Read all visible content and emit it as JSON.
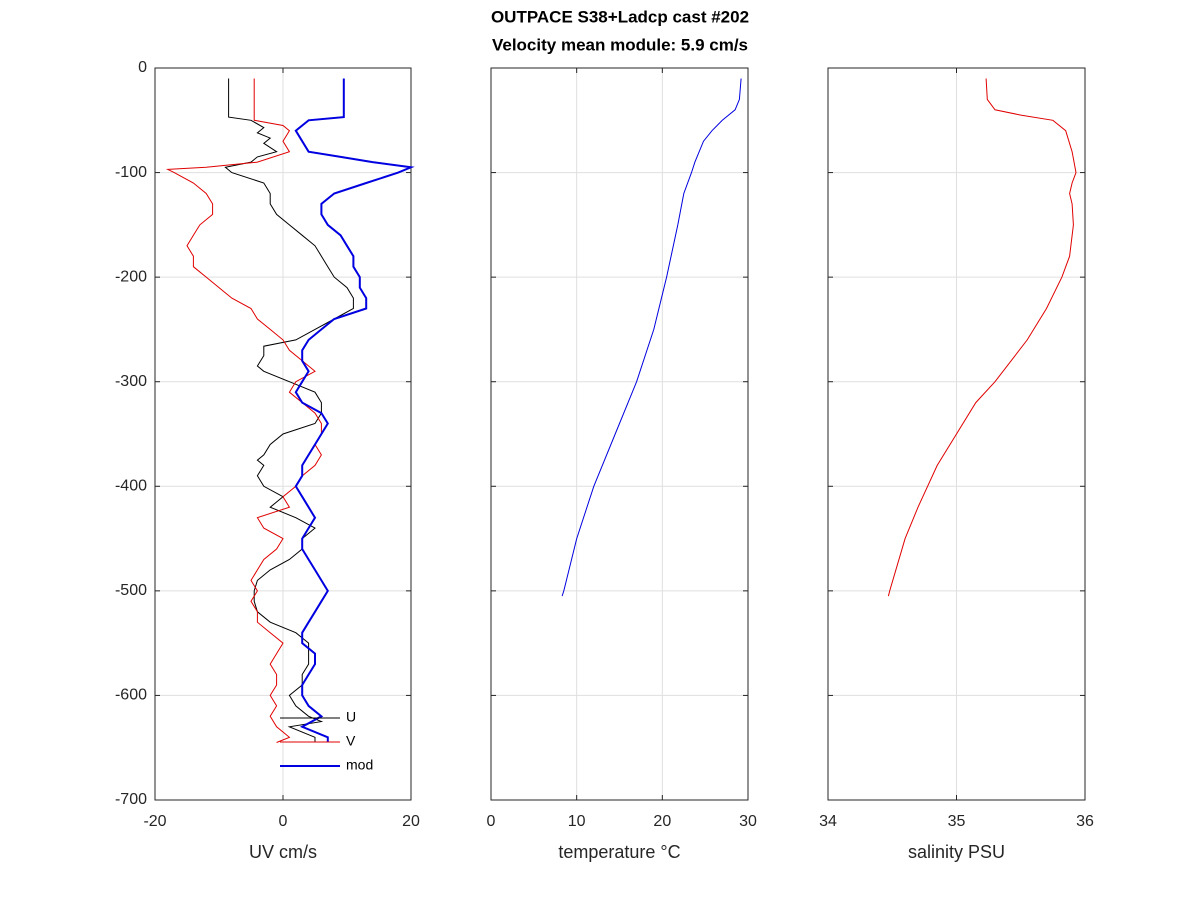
{
  "title": [
    "OUTPACE S38+Ladcp cast #202",
    "Velocity mean module:  5.9 cm/s"
  ],
  "chart_data": [
    {
      "type": "line",
      "xlabel": "UV cm/s",
      "xlim": [
        -20,
        20
      ],
      "xticks": [
        -20,
        0,
        20
      ],
      "ylim": [
        -700,
        0
      ],
      "yticks": [
        0,
        -100,
        -200,
        -300,
        -400,
        -500,
        -600,
        -700
      ],
      "ytick_labels": true,
      "grid": true,
      "legend": "southeast",
      "series": [
        {
          "name": "U",
          "color": "#000000",
          "width": 1,
          "y": [
            -10,
            -47,
            -50,
            -57,
            -62,
            -67,
            -72,
            -80,
            -85,
            -90,
            -95,
            -100,
            -110,
            -120,
            -130,
            -140,
            -150,
            -160,
            -170,
            -180,
            -190,
            -200,
            -210,
            -220,
            -230,
            -240,
            -250,
            -260,
            -266,
            -275,
            -285,
            -290,
            -300,
            -310,
            -320,
            -330,
            -340,
            -350,
            -360,
            -370,
            -375,
            -380,
            -390,
            -400,
            -410,
            -420,
            -430,
            -440,
            -450,
            -460,
            -470,
            -480,
            -490,
            -500,
            -510,
            -520,
            -530,
            -540,
            -550,
            -560,
            -570,
            -580,
            -590,
            -600,
            -610,
            -620,
            -625,
            -630,
            -640,
            -645
          ],
          "x": [
            -8.5,
            -8.5,
            -5,
            -3,
            -4,
            -2,
            -3,
            -1,
            -4,
            -5,
            -9,
            -8,
            -3,
            -2,
            -2,
            -1,
            1,
            3,
            5,
            6,
            7,
            8,
            10,
            11,
            11,
            8,
            5,
            2,
            -3,
            -3,
            -4,
            -3,
            1,
            5,
            6,
            6,
            5,
            0,
            -2,
            -3,
            -4,
            -3,
            -4,
            -3,
            0,
            -2,
            2,
            5,
            3,
            3,
            1,
            -2,
            -4,
            -4.5,
            -4.5,
            -4,
            -2,
            2,
            4,
            4,
            4,
            3,
            3,
            1,
            2,
            4,
            6,
            1,
            5,
            5
          ]
        },
        {
          "name": "V",
          "color": "#e00000",
          "width": 1,
          "y": [
            -10,
            -50,
            -55,
            -60,
            -70,
            -80,
            -90,
            -95,
            -97,
            -100,
            -110,
            -120,
            -130,
            -140,
            -150,
            -160,
            -170,
            -180,
            -190,
            -200,
            -210,
            -220,
            -230,
            -240,
            -250,
            -260,
            -270,
            -280,
            -290,
            -300,
            -310,
            -320,
            -330,
            -340,
            -350,
            -360,
            -370,
            -380,
            -390,
            -400,
            -410,
            -420,
            -430,
            -440,
            -450,
            -460,
            -470,
            -480,
            -490,
            -500,
            -510,
            -520,
            -530,
            -540,
            -550,
            -560,
            -570,
            -580,
            -590,
            -600,
            -610,
            -620,
            -630,
            -640,
            -645
          ],
          "x": [
            -4.5,
            -4.5,
            0,
            1,
            0,
            1,
            -4,
            -12,
            -18,
            -17,
            -14,
            -12,
            -11,
            -11,
            -13,
            -14,
            -15,
            -14,
            -14,
            -12,
            -10,
            -8,
            -5,
            -4,
            -2,
            0,
            1,
            3,
            5,
            2,
            1,
            3,
            5,
            6,
            6,
            5,
            6,
            5,
            3,
            2,
            0,
            1,
            -4,
            -3,
            0,
            -1,
            -3,
            -4,
            -5,
            -4,
            -5,
            -4,
            -4,
            -2,
            0,
            -1,
            -2,
            -1,
            -1,
            -2,
            -1,
            -2,
            -1,
            1,
            -1
          ]
        },
        {
          "name": "mod",
          "color": "#0000e0",
          "width": 2,
          "y": [
            -10,
            -47,
            -50,
            -60,
            -70,
            -80,
            -85,
            -90,
            -95,
            -100,
            -110,
            -120,
            -130,
            -140,
            -150,
            -160,
            -170,
            -180,
            -190,
            -200,
            -210,
            -220,
            -230,
            -240,
            -250,
            -260,
            -270,
            -280,
            -290,
            -300,
            -310,
            -320,
            -330,
            -340,
            -350,
            -360,
            -370,
            -380,
            -390,
            -400,
            -410,
            -420,
            -430,
            -440,
            -450,
            -460,
            -470,
            -480,
            -490,
            -500,
            -510,
            -520,
            -530,
            -540,
            -550,
            -560,
            -570,
            -580,
            -590,
            -600,
            -610,
            -620,
            -630,
            -640,
            -645
          ],
          "x": [
            9.5,
            9.5,
            4,
            2,
            3,
            4,
            9,
            14,
            20,
            18,
            13,
            8,
            6,
            6,
            7,
            9,
            10,
            11,
            11,
            12,
            12,
            13,
            13,
            8,
            6,
            4,
            3,
            3,
            4,
            3,
            2,
            3,
            6,
            7,
            6,
            5,
            4,
            3,
            3,
            2,
            3,
            4,
            5,
            4,
            3,
            3,
            4,
            5,
            6,
            7,
            6,
            5,
            4,
            3,
            3,
            5,
            5,
            4,
            3,
            3,
            4,
            6,
            3,
            7,
            7
          ]
        }
      ]
    },
    {
      "type": "line",
      "xlabel": "temperature °C",
      "xlim": [
        0,
        30
      ],
      "xticks": [
        0,
        10,
        20,
        30
      ],
      "ylim": [
        -700,
        0
      ],
      "yticks": [
        0,
        -100,
        -200,
        -300,
        -400,
        -500,
        -600,
        -700
      ],
      "ytick_labels": false,
      "grid": true,
      "series": [
        {
          "color": "#0000e0",
          "width": 1,
          "y": [
            -10,
            -30,
            -40,
            -50,
            -60,
            -70,
            -90,
            -100,
            -120,
            -150,
            -200,
            -250,
            -300,
            -350,
            -400,
            -450,
            -500,
            -505
          ],
          "x": [
            29.2,
            29,
            28.5,
            27,
            25.8,
            24.8,
            23.8,
            23.4,
            22.5,
            21.8,
            20.5,
            19,
            17,
            14.5,
            12,
            10,
            8.5,
            8.3
          ]
        }
      ]
    },
    {
      "type": "line",
      "xlabel": "salinity PSU",
      "xlim": [
        34,
        36
      ],
      "xticks": [
        34,
        35,
        36
      ],
      "ylim": [
        -700,
        0
      ],
      "yticks": [
        0,
        -100,
        -200,
        -300,
        -400,
        -500,
        -600,
        -700
      ],
      "ytick_labels": false,
      "grid": true,
      "series": [
        {
          "color": "#e00000",
          "width": 1,
          "y": [
            -10,
            -30,
            -40,
            -45,
            -50,
            -60,
            -80,
            -100,
            -110,
            -120,
            -130,
            -150,
            -180,
            -200,
            -230,
            -260,
            -300,
            -320,
            -350,
            -380,
            -420,
            -450,
            -500,
            -505
          ],
          "x": [
            35.23,
            35.24,
            35.3,
            35.5,
            35.75,
            35.85,
            35.9,
            35.93,
            35.9,
            35.88,
            35.9,
            35.91,
            35.88,
            35.82,
            35.7,
            35.55,
            35.3,
            35.15,
            35.0,
            34.85,
            34.7,
            34.6,
            34.48,
            34.47
          ]
        }
      ]
    }
  ]
}
